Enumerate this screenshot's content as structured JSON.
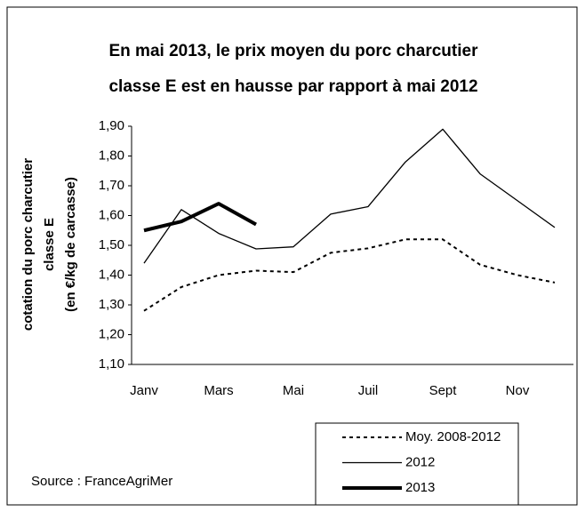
{
  "chart_data": {
    "type": "line",
    "title": [
      "En mai 2013, le prix moyen du porc charcutier",
      "classe E est en hausse par rapport à mai 2012"
    ],
    "ylabel": [
      "cotation du porc charcutier",
      "classe E",
      "(en €/kg de carcasse)"
    ],
    "source": "Source : FranceAgriMer",
    "categories": [
      "Janv",
      null,
      "Mars",
      null,
      "Mai",
      null,
      "Juil",
      null,
      "Sept",
      null,
      "Nov",
      null
    ],
    "ylim": [
      1.1,
      1.9
    ],
    "yticks": [
      {
        "value": 1.1,
        "label": "1,10"
      },
      {
        "value": 1.2,
        "label": "1,20"
      },
      {
        "value": 1.3,
        "label": "1,30"
      },
      {
        "value": 1.4,
        "label": "1,40"
      },
      {
        "value": 1.5,
        "label": "1,50"
      },
      {
        "value": 1.6,
        "label": "1,60"
      },
      {
        "value": 1.7,
        "label": "1,70"
      },
      {
        "value": 1.8,
        "label": "1,80"
      },
      {
        "value": 1.9,
        "label": "1,90"
      }
    ],
    "grid": false,
    "series": [
      {
        "name": "Moy. 2008-2012",
        "color": "#000000",
        "line_style": "dotted",
        "line_width": 2,
        "values": [
          1.28,
          1.36,
          1.4,
          1.415,
          1.41,
          1.475,
          1.49,
          1.52,
          1.52,
          1.435,
          1.4,
          1.375
        ]
      },
      {
        "name": "2012",
        "color": "#000000",
        "line_style": "solid",
        "line_width": 1.3,
        "values": [
          1.44,
          1.62,
          1.54,
          1.488,
          1.495,
          1.605,
          1.63,
          1.78,
          1.89,
          1.74,
          1.65,
          1.56
        ]
      },
      {
        "name": "2013",
        "color": "#000000",
        "line_style": "solid",
        "line_width": 4,
        "values": [
          1.55,
          1.58,
          1.64,
          1.57,
          null,
          null,
          null,
          null,
          null,
          null,
          null,
          null
        ]
      }
    ]
  }
}
